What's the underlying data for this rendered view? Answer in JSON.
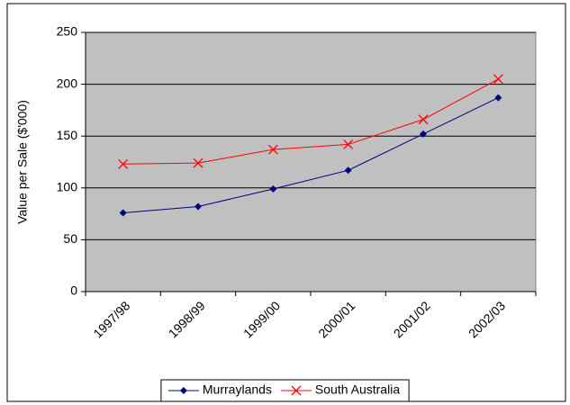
{
  "chart_data": {
    "type": "line",
    "y_label": "Value per Sale ($'000)",
    "categories": [
      "1997/98",
      "1998/99",
      "1999/00",
      "2000/01",
      "2001/02",
      "2002/03"
    ],
    "series": [
      {
        "name": "Murraylands",
        "color": "#000080",
        "marker": "diamond",
        "values": [
          76,
          82,
          99,
          117,
          152,
          187
        ]
      },
      {
        "name": "South Australia",
        "color": "#ff0000",
        "marker": "x",
        "values": [
          123,
          124,
          137,
          142,
          166,
          205
        ]
      }
    ],
    "ylim": [
      0,
      250
    ],
    "yticks": [
      0,
      50,
      100,
      150,
      200,
      250
    ],
    "grid": true,
    "plot_background": "#c0c0c0",
    "legend": "bottom"
  }
}
